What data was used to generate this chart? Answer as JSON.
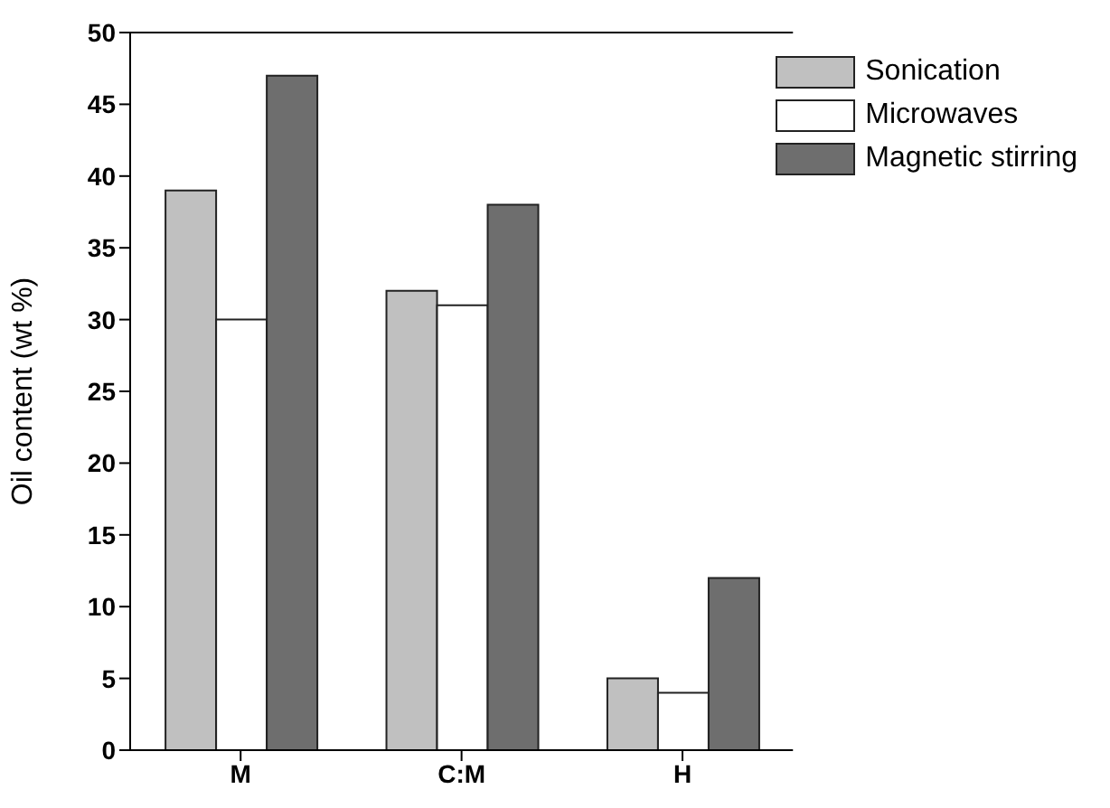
{
  "chart_data": {
    "type": "bar",
    "ylabel": "Oil content (wt %)",
    "categories": [
      "M",
      "C:M",
      "H"
    ],
    "series": [
      {
        "name": "Sonication",
        "color": "#c0c0c0",
        "values": [
          39,
          32,
          5
        ]
      },
      {
        "name": "Microwaves",
        "color": "#ffffff",
        "values": [
          30,
          31,
          4
        ]
      },
      {
        "name": "Magnetic stirring",
        "color": "#6e6e6e",
        "values": [
          47,
          38,
          12
        ]
      }
    ],
    "ylim": [
      0,
      50
    ],
    "yticks": [
      0,
      5,
      10,
      15,
      20,
      25,
      30,
      35,
      40,
      45,
      50
    ],
    "legend": "top right"
  }
}
